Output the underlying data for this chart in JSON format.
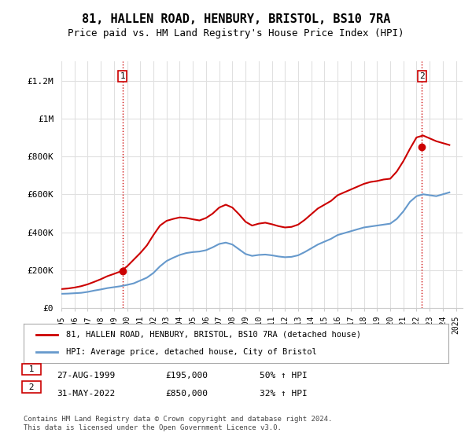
{
  "title": "81, HALLEN ROAD, HENBURY, BRISTOL, BS10 7RA",
  "subtitle": "Price paid vs. HM Land Registry's House Price Index (HPI)",
  "title_fontsize": 11,
  "subtitle_fontsize": 9,
  "ylabel_ticks": [
    "£0",
    "£200K",
    "£400K",
    "£600K",
    "£800K",
    "£1M",
    "£1.2M"
  ],
  "ytick_values": [
    0,
    200000,
    400000,
    600000,
    800000,
    1000000,
    1200000
  ],
  "ylim": [
    0,
    1300000
  ],
  "xlim_start": 1995.0,
  "xlim_end": 2025.5,
  "background_color": "#ffffff",
  "grid_color": "#e0e0e0",
  "hpi_color": "#6699cc",
  "price_color": "#cc0000",
  "point1_x": 1999.65,
  "point1_y": 195000,
  "point2_x": 2022.42,
  "point2_y": 850000,
  "legend_label_red": "81, HALLEN ROAD, HENBURY, BRISTOL, BS10 7RA (detached house)",
  "legend_label_blue": "HPI: Average price, detached house, City of Bristol",
  "annotation1_label": "1",
  "annotation2_label": "2",
  "table_row1": [
    "1",
    "27-AUG-1999",
    "£195,000",
    "50% ↑ HPI"
  ],
  "table_row2": [
    "2",
    "31-MAY-2022",
    "£850,000",
    "32% ↑ HPI"
  ],
  "footer": "Contains HM Land Registry data © Crown copyright and database right 2024.\nThis data is licensed under the Open Government Licence v3.0.",
  "hpi_data_x": [
    1995.0,
    1995.5,
    1996.0,
    1996.5,
    1997.0,
    1997.5,
    1998.0,
    1998.5,
    1999.0,
    1999.5,
    2000.0,
    2000.5,
    2001.0,
    2001.5,
    2002.0,
    2002.5,
    2003.0,
    2003.5,
    2004.0,
    2004.5,
    2005.0,
    2005.5,
    2006.0,
    2006.5,
    2007.0,
    2007.5,
    2008.0,
    2008.5,
    2009.0,
    2009.5,
    2010.0,
    2010.5,
    2011.0,
    2011.5,
    2012.0,
    2012.5,
    2013.0,
    2013.5,
    2014.0,
    2014.5,
    2015.0,
    2015.5,
    2016.0,
    2016.5,
    2017.0,
    2017.5,
    2018.0,
    2018.5,
    2019.0,
    2019.5,
    2020.0,
    2020.5,
    2021.0,
    2021.5,
    2022.0,
    2022.5,
    2023.0,
    2023.5,
    2024.0,
    2024.5
  ],
  "hpi_data_y": [
    75000,
    76000,
    78000,
    80000,
    85000,
    92000,
    98000,
    105000,
    110000,
    115000,
    122000,
    130000,
    145000,
    160000,
    185000,
    220000,
    248000,
    265000,
    280000,
    290000,
    295000,
    298000,
    305000,
    320000,
    338000,
    345000,
    335000,
    310000,
    285000,
    275000,
    280000,
    282000,
    278000,
    272000,
    268000,
    270000,
    278000,
    295000,
    315000,
    335000,
    350000,
    365000,
    385000,
    395000,
    405000,
    415000,
    425000,
    430000,
    435000,
    440000,
    445000,
    470000,
    510000,
    560000,
    590000,
    600000,
    595000,
    590000,
    600000,
    610000
  ],
  "price_data_x": [
    1995.0,
    1995.5,
    1996.0,
    1996.5,
    1997.0,
    1997.5,
    1998.0,
    1998.5,
    1999.0,
    1999.5,
    2000.0,
    2000.5,
    2001.0,
    2001.5,
    2002.0,
    2002.5,
    2003.0,
    2003.5,
    2004.0,
    2004.5,
    2005.0,
    2005.5,
    2006.0,
    2006.5,
    2007.0,
    2007.5,
    2008.0,
    2008.5,
    2009.0,
    2009.5,
    2010.0,
    2010.5,
    2011.0,
    2011.5,
    2012.0,
    2012.5,
    2013.0,
    2013.5,
    2014.0,
    2014.5,
    2015.0,
    2015.5,
    2016.0,
    2016.5,
    2017.0,
    2017.5,
    2018.0,
    2018.5,
    2019.0,
    2019.5,
    2020.0,
    2020.5,
    2021.0,
    2021.5,
    2022.0,
    2022.5,
    2023.0,
    2023.5,
    2024.0,
    2024.5
  ],
  "price_data_y": [
    100000,
    103000,
    108000,
    115000,
    125000,
    138000,
    152000,
    168000,
    180000,
    193000,
    220000,
    255000,
    290000,
    330000,
    385000,
    435000,
    460000,
    470000,
    478000,
    475000,
    468000,
    462000,
    475000,
    498000,
    530000,
    545000,
    530000,
    495000,
    455000,
    435000,
    445000,
    450000,
    442000,
    432000,
    425000,
    428000,
    440000,
    465000,
    495000,
    525000,
    545000,
    565000,
    595000,
    610000,
    625000,
    640000,
    655000,
    665000,
    670000,
    678000,
    682000,
    720000,
    775000,
    840000,
    900000,
    910000,
    895000,
    880000,
    870000,
    860000
  ]
}
